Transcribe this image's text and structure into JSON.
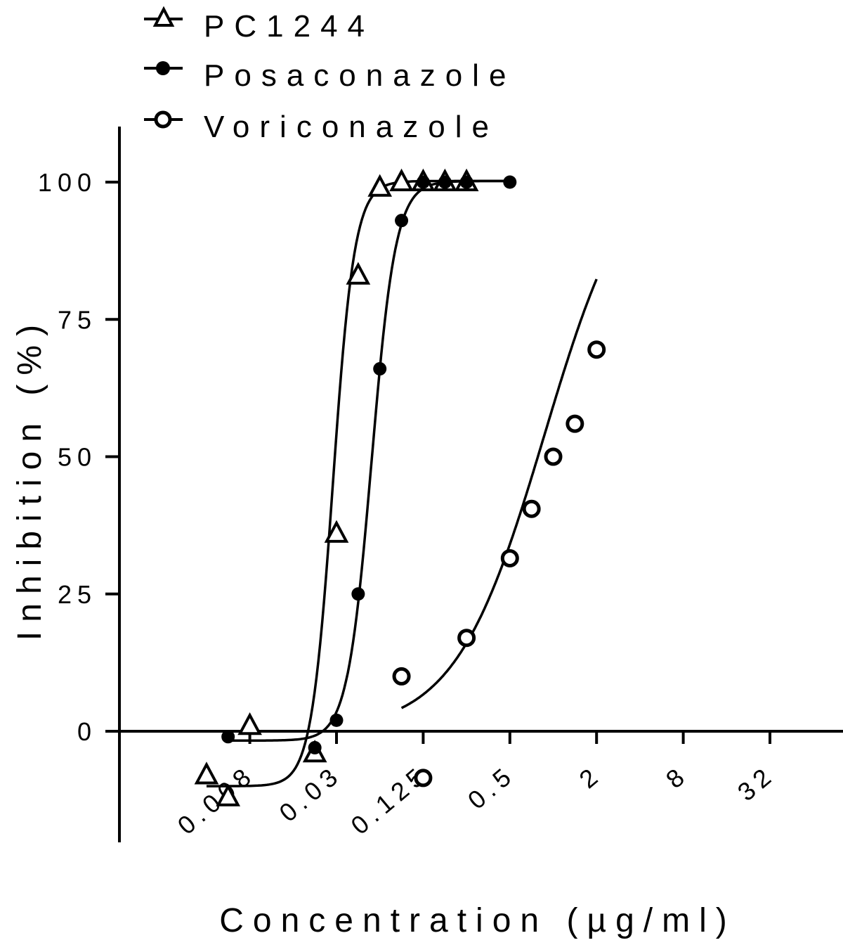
{
  "chart_data": {
    "type": "scatter",
    "xlabel": "Concentration (µg/ml)",
    "ylabel": "Inhibition (%)",
    "x_scale": "log2",
    "x_ticks": [
      {
        "value": 0.0078125,
        "label": "0.008"
      },
      {
        "value": 0.03125,
        "label": "0.03"
      },
      {
        "value": 0.125,
        "label": "0.125"
      },
      {
        "value": 0.5,
        "label": "0.5"
      },
      {
        "value": 2,
        "label": "2"
      },
      {
        "value": 8,
        "label": "8"
      },
      {
        "value": 32,
        "label": "32"
      }
    ],
    "xlim": [
      0.00276,
      64
    ],
    "y_ticks": [
      0,
      25,
      50,
      75,
      100
    ],
    "ylim": [
      -20,
      110
    ],
    "legend_position": "top-left",
    "series": [
      {
        "name": "PC1244",
        "marker": "open-triangle",
        "points": [
          [
            0.00391,
            -8
          ],
          [
            0.00552,
            -12
          ],
          [
            0.0078125,
            1
          ],
          [
            0.0221,
            -4
          ],
          [
            0.03125,
            36
          ],
          [
            0.0442,
            83
          ],
          [
            0.0625,
            99
          ],
          [
            0.0884,
            100
          ],
          [
            0.125,
            100
          ],
          [
            0.177,
            100
          ],
          [
            0.25,
            100
          ]
        ],
        "fit": {
          "bottom": -10,
          "top": 100.2,
          "ec50": 0.0295,
          "hill": 5.8,
          "x_from": 0.00391,
          "x_to": 0.5
        }
      },
      {
        "name": "Posaconazole",
        "marker": "filled-circle",
        "points": [
          [
            0.00552,
            -1
          ],
          [
            0.0221,
            -3
          ],
          [
            0.03125,
            2
          ],
          [
            0.0442,
            25
          ],
          [
            0.0625,
            66
          ],
          [
            0.0884,
            93
          ],
          [
            0.125,
            100
          ],
          [
            0.177,
            100
          ],
          [
            0.25,
            100
          ],
          [
            0.5,
            100
          ]
        ],
        "fit": {
          "bottom": -1.7,
          "top": 100.2,
          "ec50": 0.0548,
          "hill": 5.2,
          "x_from": 0.00552,
          "x_to": 0.5
        }
      },
      {
        "name": "Voriconazole",
        "marker": "open-circle",
        "points": [
          [
            0.0884,
            10
          ],
          [
            0.125,
            -8.5
          ],
          [
            0.25,
            17
          ],
          [
            0.5,
            31.5
          ],
          [
            0.707,
            40.5
          ],
          [
            1,
            50
          ],
          [
            1.414,
            56
          ],
          [
            2,
            69.5
          ]
        ],
        "fit": {
          "bottom": 0,
          "top": 108,
          "ec50": 0.87,
          "hill": 1.4,
          "x_from": 0.0884,
          "x_to": 2
        }
      }
    ]
  }
}
